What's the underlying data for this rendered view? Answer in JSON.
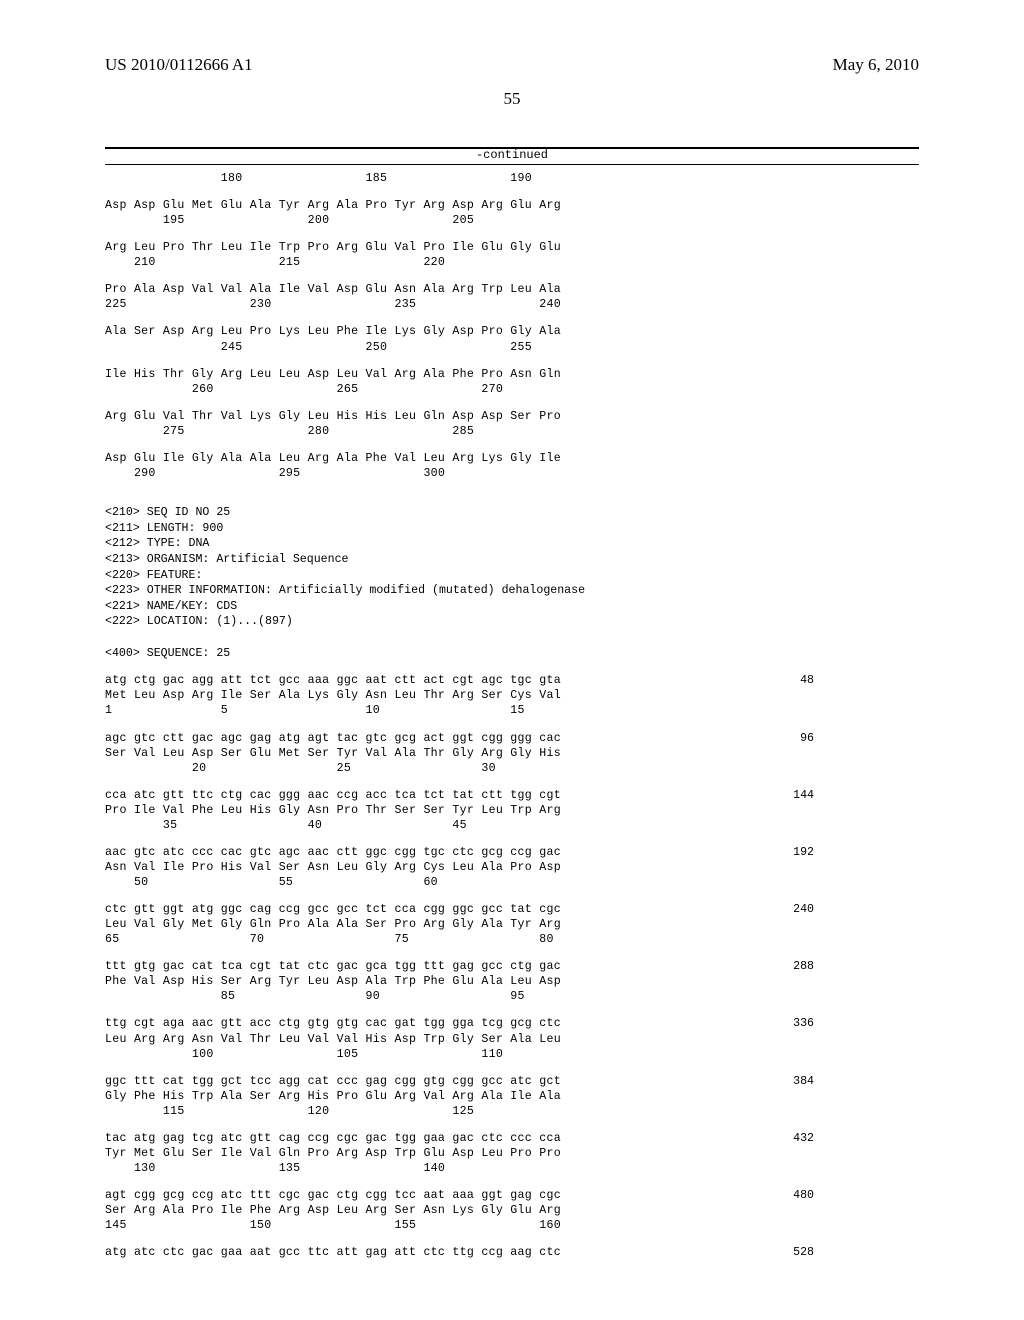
{
  "header": {
    "pub_number": "US 2010/0112666 A1",
    "date": "May 6, 2010"
  },
  "page_number": "55",
  "continued": "-continued",
  "prot_rows": [
    {
      "pos": "                180                 185                 190"
    },
    {
      "gap": true
    },
    {
      "aa": "Asp Asp Glu Met Glu Ala Tyr Arg Ala Pro Tyr Arg Asp Arg Glu Arg"
    },
    {
      "pos": "        195                 200                 205"
    },
    {
      "gap": true
    },
    {
      "aa": "Arg Leu Pro Thr Leu Ile Trp Pro Arg Glu Val Pro Ile Glu Gly Glu"
    },
    {
      "pos": "    210                 215                 220"
    },
    {
      "gap": true
    },
    {
      "aa": "Pro Ala Asp Val Val Ala Ile Val Asp Glu Asn Ala Arg Trp Leu Ala"
    },
    {
      "pos": "225                 230                 235                 240"
    },
    {
      "gap": true
    },
    {
      "aa": "Ala Ser Asp Arg Leu Pro Lys Leu Phe Ile Lys Gly Asp Pro Gly Ala"
    },
    {
      "pos": "                245                 250                 255"
    },
    {
      "gap": true
    },
    {
      "aa": "Ile His Thr Gly Arg Leu Leu Asp Leu Val Arg Ala Phe Pro Asn Gln"
    },
    {
      "pos": "            260                 265                 270"
    },
    {
      "gap": true
    },
    {
      "aa": "Arg Glu Val Thr Val Lys Gly Leu His His Leu Gln Asp Asp Ser Pro"
    },
    {
      "pos": "        275                 280                 285"
    },
    {
      "gap": true
    },
    {
      "aa": "Asp Glu Ile Gly Ala Ala Leu Arg Ala Phe Val Leu Arg Lys Gly Ile"
    },
    {
      "pos": "    290                 295                 300"
    }
  ],
  "meta": [
    "<210> SEQ ID NO 25",
    "<211> LENGTH: 900",
    "<212> TYPE: DNA",
    "<213> ORGANISM: Artificial Sequence",
    "<220> FEATURE:",
    "<223> OTHER INFORMATION: Artificially modified (mutated) dehalogenase",
    "<221> NAME/KEY: CDS",
    "<222> LOCATION: (1)...(897)",
    "",
    "<400> SEQUENCE: 25"
  ],
  "dna_rows": [
    {
      "nt": "atg ctg gac agg att tct gcc aaa ggc aat ctt act cgt agc tgc gta",
      "bp": "48"
    },
    {
      "aa": "Met Leu Asp Arg Ile Ser Ala Lys Gly Asn Leu Thr Arg Ser Cys Val"
    },
    {
      "pos": "1               5                   10                  15"
    },
    {
      "gap": true
    },
    {
      "nt": "agc gtc ctt gac agc gag atg agt tac gtc gcg act ggt cgg ggg cac",
      "bp": "96"
    },
    {
      "aa": "Ser Val Leu Asp Ser Glu Met Ser Tyr Val Ala Thr Gly Arg Gly His"
    },
    {
      "pos": "            20                  25                  30"
    },
    {
      "gap": true
    },
    {
      "nt": "cca atc gtt ttc ctg cac ggg aac ccg acc tca tct tat ctt tgg cgt",
      "bp": "144"
    },
    {
      "aa": "Pro Ile Val Phe Leu His Gly Asn Pro Thr Ser Ser Tyr Leu Trp Arg"
    },
    {
      "pos": "        35                  40                  45"
    },
    {
      "gap": true
    },
    {
      "nt": "aac gtc atc ccc cac gtc agc aac ctt ggc cgg tgc ctc gcg ccg gac",
      "bp": "192"
    },
    {
      "aa": "Asn Val Ile Pro His Val Ser Asn Leu Gly Arg Cys Leu Ala Pro Asp"
    },
    {
      "pos": "    50                  55                  60"
    },
    {
      "gap": true
    },
    {
      "nt": "ctc gtt ggt atg ggc cag ccg gcc gcc tct cca cgg ggc gcc tat cgc",
      "bp": "240"
    },
    {
      "aa": "Leu Val Gly Met Gly Gln Pro Ala Ala Ser Pro Arg Gly Ala Tyr Arg"
    },
    {
      "pos": "65                  70                  75                  80"
    },
    {
      "gap": true
    },
    {
      "nt": "ttt gtg gac cat tca cgt tat ctc gac gca tgg ttt gag gcc ctg gac",
      "bp": "288"
    },
    {
      "aa": "Phe Val Asp His Ser Arg Tyr Leu Asp Ala Trp Phe Glu Ala Leu Asp"
    },
    {
      "pos": "                85                  90                  95"
    },
    {
      "gap": true
    },
    {
      "nt": "ttg cgt aga aac gtt acc ctg gtg gtg cac gat tgg gga tcg gcg ctc",
      "bp": "336"
    },
    {
      "aa": "Leu Arg Arg Asn Val Thr Leu Val Val His Asp Trp Gly Ser Ala Leu"
    },
    {
      "pos": "            100                 105                 110"
    },
    {
      "gap": true
    },
    {
      "nt": "ggc ttt cat tgg gct tcc agg cat ccc gag cgg gtg cgg gcc atc gct",
      "bp": "384"
    },
    {
      "aa": "Gly Phe His Trp Ala Ser Arg His Pro Glu Arg Val Arg Ala Ile Ala"
    },
    {
      "pos": "        115                 120                 125"
    },
    {
      "gap": true
    },
    {
      "nt": "tac atg gag tcg atc gtt cag ccg cgc gac tgg gaa gac ctc ccc cca",
      "bp": "432"
    },
    {
      "aa": "Tyr Met Glu Ser Ile Val Gln Pro Arg Asp Trp Glu Asp Leu Pro Pro"
    },
    {
      "pos": "    130                 135                 140"
    },
    {
      "gap": true
    },
    {
      "nt": "agt cgg gcg ccg atc ttt cgc gac ctg cgg tcc aat aaa ggt gag cgc",
      "bp": "480"
    },
    {
      "aa": "Ser Arg Ala Pro Ile Phe Arg Asp Leu Arg Ser Asn Lys Gly Glu Arg"
    },
    {
      "pos": "145                 150                 155                 160"
    },
    {
      "gap": true
    },
    {
      "nt": "atg atc ctc gac gaa aat gcc ttc att gag att ctc ttg ccg aag ctc",
      "bp": "528"
    }
  ]
}
